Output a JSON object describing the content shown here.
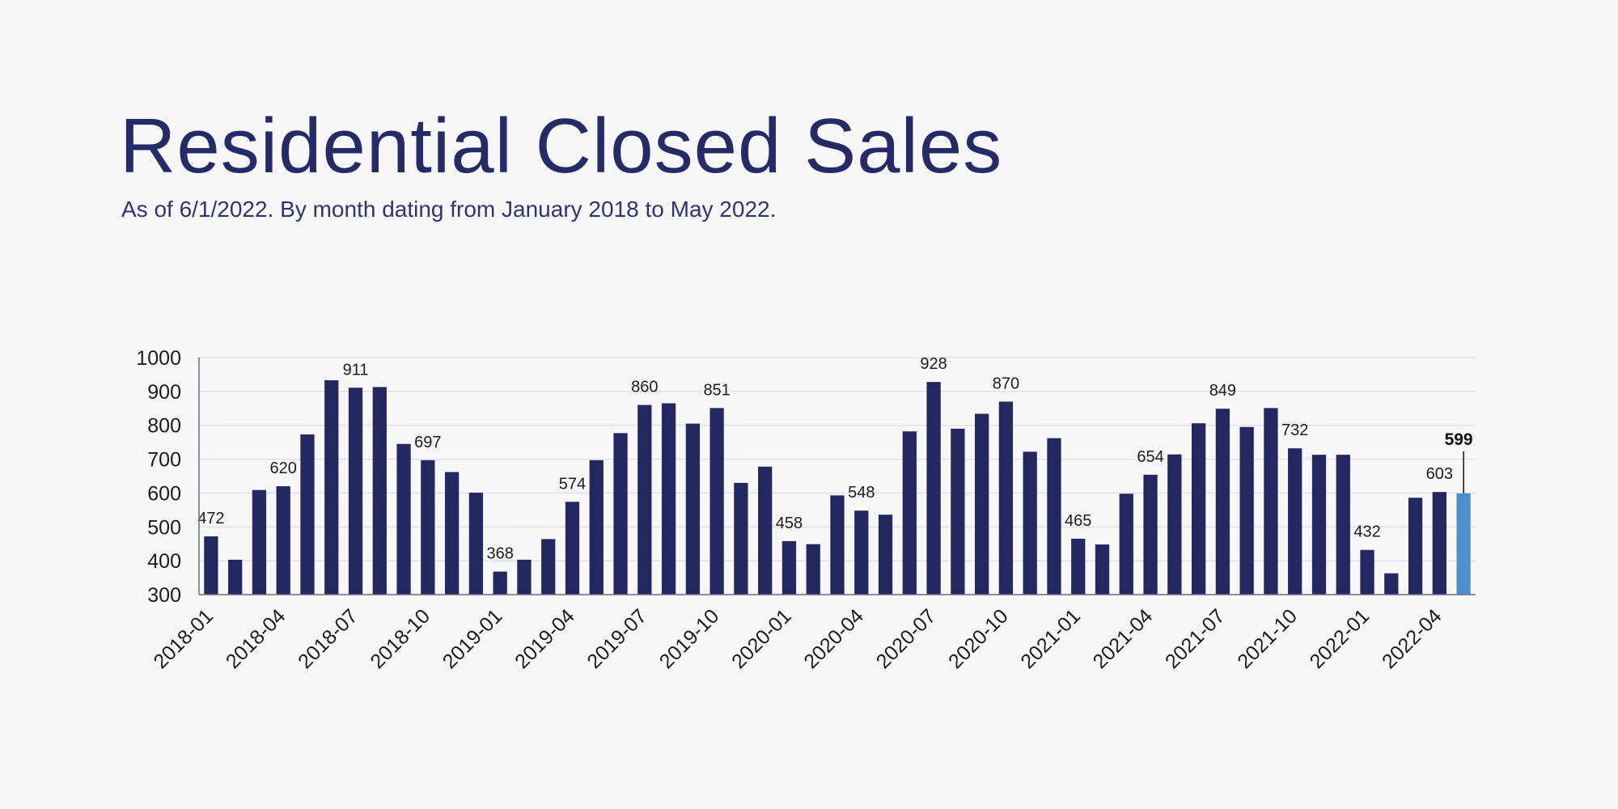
{
  "header": {
    "title": "Residential Closed Sales",
    "subtitle": "As of 6/1/2022. By month dating from January 2018 to May 2022."
  },
  "colors": {
    "bar": "#232960",
    "highlight": "#4f8fce",
    "title": "#252b66",
    "grid": "#dde2ef",
    "axis": "#6b6f80",
    "text": "#1c1c1c"
  },
  "chart_data": {
    "type": "bar",
    "title": "Residential Closed Sales",
    "ylim": [
      300,
      1000
    ],
    "yticks": [
      300,
      400,
      500,
      600,
      700,
      800,
      900,
      1000
    ],
    "grid": true,
    "categories": [
      "2018-01",
      "2018-02",
      "2018-03",
      "2018-04",
      "2018-05",
      "2018-06",
      "2018-07",
      "2018-08",
      "2018-09",
      "2018-10",
      "2018-11",
      "2018-12",
      "2019-01",
      "2019-02",
      "2019-03",
      "2019-04",
      "2019-05",
      "2019-06",
      "2019-07",
      "2019-08",
      "2019-09",
      "2019-10",
      "2019-11",
      "2019-12",
      "2020-01",
      "2020-02",
      "2020-03",
      "2020-04",
      "2020-05",
      "2020-06",
      "2020-07",
      "2020-08",
      "2020-09",
      "2020-10",
      "2020-11",
      "2020-12",
      "2021-01",
      "2021-02",
      "2021-03",
      "2021-04",
      "2021-05",
      "2021-06",
      "2021-07",
      "2021-08",
      "2021-09",
      "2021-10",
      "2021-11",
      "2021-12",
      "2022-01",
      "2022-02",
      "2022-03",
      "2022-04",
      "2022-05"
    ],
    "values": [
      472,
      403,
      609,
      620,
      773,
      933,
      911,
      913,
      745,
      697,
      662,
      601,
      368,
      403,
      464,
      574,
      697,
      777,
      860,
      865,
      805,
      851,
      630,
      678,
      458,
      449,
      593,
      548,
      536,
      782,
      928,
      790,
      834,
      870,
      722,
      762,
      465,
      448,
      598,
      654,
      714,
      806,
      849,
      795,
      851,
      732,
      713,
      713,
      432,
      363,
      586,
      603,
      599
    ],
    "xtick_labels": [
      "2018-01",
      "2018-04",
      "2018-07",
      "2018-10",
      "2019-01",
      "2019-04",
      "2019-07",
      "2019-10",
      "2020-01",
      "2020-04",
      "2020-07",
      "2020-10",
      "2021-01",
      "2021-04",
      "2021-07",
      "2021-10",
      "2022-01",
      "2022-04"
    ],
    "data_labels": [
      {
        "category": "2018-01",
        "text": "472"
      },
      {
        "category": "2018-04",
        "text": "620"
      },
      {
        "category": "2018-07",
        "text": "911"
      },
      {
        "category": "2018-10",
        "text": "697"
      },
      {
        "category": "2019-01",
        "text": "368"
      },
      {
        "category": "2019-04",
        "text": "574"
      },
      {
        "category": "2019-07",
        "text": "860"
      },
      {
        "category": "2019-10",
        "text": "851"
      },
      {
        "category": "2020-01",
        "text": "458"
      },
      {
        "category": "2020-04",
        "text": "548"
      },
      {
        "category": "2020-07",
        "text": "928"
      },
      {
        "category": "2020-10",
        "text": "870"
      },
      {
        "category": "2021-01",
        "text": "465"
      },
      {
        "category": "2021-04",
        "text": "654"
      },
      {
        "category": "2021-07",
        "text": "849"
      },
      {
        "category": "2021-10",
        "text": "732"
      },
      {
        "category": "2022-01",
        "text": "432"
      },
      {
        "category": "2022-04",
        "text": "603"
      }
    ],
    "highlight": {
      "category": "2022-05",
      "text": "599"
    }
  }
}
